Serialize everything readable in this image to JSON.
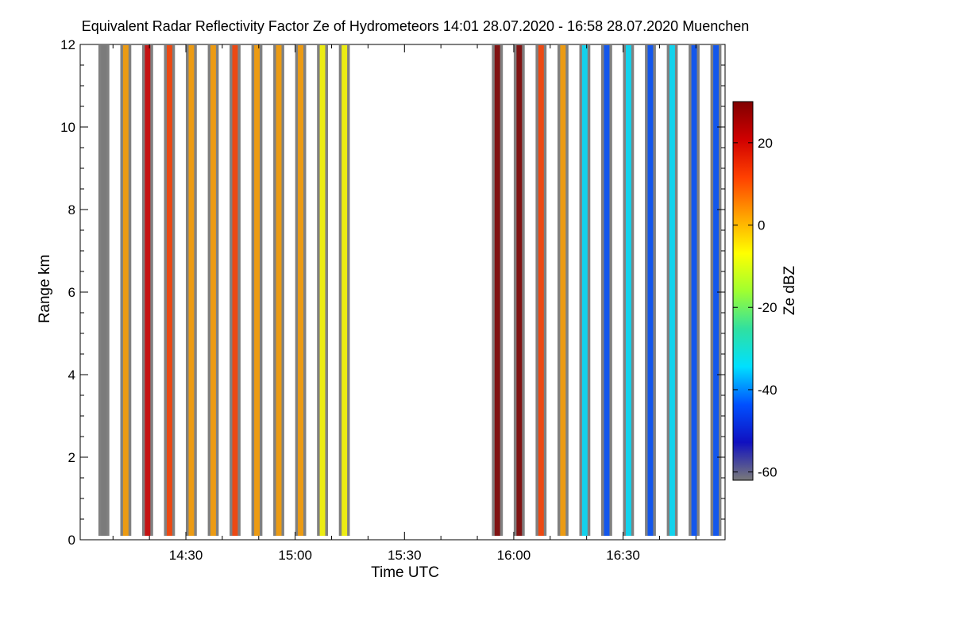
{
  "chart_data": {
    "type": "heatmap",
    "title": "Equivalent Radar Reflectivity Factor Ze of Hydrometeors   14:01 28.07.2020 - 16:58 28.07.2020 Muenchen",
    "xlabel": "Time UTC",
    "ylabel": "Range km",
    "x_unit": "minutes after 14:00 UTC",
    "xlim": [
      1,
      178
    ],
    "ylim": [
      0,
      12
    ],
    "x_ticks": [
      {
        "value": 30,
        "label": "14:30"
      },
      {
        "value": 60,
        "label": "15:00"
      },
      {
        "value": 90,
        "label": "15:30"
      },
      {
        "value": 120,
        "label": "16:00"
      },
      {
        "value": 150,
        "label": "16:30"
      }
    ],
    "y_ticks": [
      {
        "value": 0,
        "label": "0"
      },
      {
        "value": 2,
        "label": "2"
      },
      {
        "value": 4,
        "label": "4"
      },
      {
        "value": 6,
        "label": "6"
      },
      {
        "value": 8,
        "label": "8"
      },
      {
        "value": 10,
        "label": "10"
      },
      {
        "value": 12,
        "label": "12"
      }
    ],
    "colorbar": {
      "label": "Ze dBZ",
      "range": [
        -62,
        30
      ],
      "ticks": [
        {
          "value": 20,
          "label": "20"
        },
        {
          "value": 0,
          "label": "0"
        },
        {
          "value": -20,
          "label": "-20"
        },
        {
          "value": -40,
          "label": "-40"
        },
        {
          "value": -60,
          "label": "-60"
        }
      ],
      "colors": [
        "#7a7a7a",
        "#1010c0",
        "#0050ff",
        "#00e0ff",
        "#30e0a0",
        "#a0ff30",
        "#ffff00",
        "#ffa000",
        "#ff4000",
        "#d00000",
        "#800000"
      ]
    },
    "observation_periods": [
      {
        "start": 6,
        "end": 9,
        "top": 12,
        "dbz": -60
      },
      {
        "start": 12,
        "end": 15,
        "top": 12,
        "dbz": 5
      },
      {
        "start": 18,
        "end": 21,
        "top": 12,
        "dbz": 25
      },
      {
        "start": 24,
        "end": 27,
        "top": 12,
        "dbz": 15
      },
      {
        "start": 30,
        "end": 33,
        "top": 12,
        "dbz": 0
      },
      {
        "start": 36,
        "end": 39,
        "top": 12,
        "dbz": 5
      },
      {
        "start": 42,
        "end": 45,
        "top": 12,
        "dbz": 10
      },
      {
        "start": 48,
        "end": 51,
        "top": 12,
        "dbz": 5
      },
      {
        "start": 54,
        "end": 57,
        "top": 12,
        "dbz": 0
      },
      {
        "start": 60,
        "end": 63,
        "top": 12,
        "dbz": 0
      },
      {
        "start": 66,
        "end": 69,
        "top": 12,
        "dbz": -5
      },
      {
        "start": 72,
        "end": 75,
        "top": 12,
        "dbz": -5
      },
      {
        "start": 114,
        "end": 117,
        "top": 12,
        "dbz": 28
      },
      {
        "start": 120,
        "end": 123,
        "top": 12,
        "dbz": 28
      },
      {
        "start": 126,
        "end": 129,
        "top": 12,
        "dbz": 10
      },
      {
        "start": 132,
        "end": 135,
        "top": 12,
        "dbz": 5
      },
      {
        "start": 138,
        "end": 141,
        "top": 12,
        "dbz": -30
      },
      {
        "start": 144,
        "end": 147,
        "top": 12,
        "dbz": -40
      },
      {
        "start": 150,
        "end": 153,
        "top": 12,
        "dbz": -30
      },
      {
        "start": 156,
        "end": 159,
        "top": 12,
        "dbz": -40
      },
      {
        "start": 162,
        "end": 165,
        "top": 12,
        "dbz": -35
      },
      {
        "start": 168,
        "end": 171,
        "top": 12,
        "dbz": -40
      },
      {
        "start": 174,
        "end": 177,
        "top": 12,
        "dbz": -40
      }
    ]
  }
}
